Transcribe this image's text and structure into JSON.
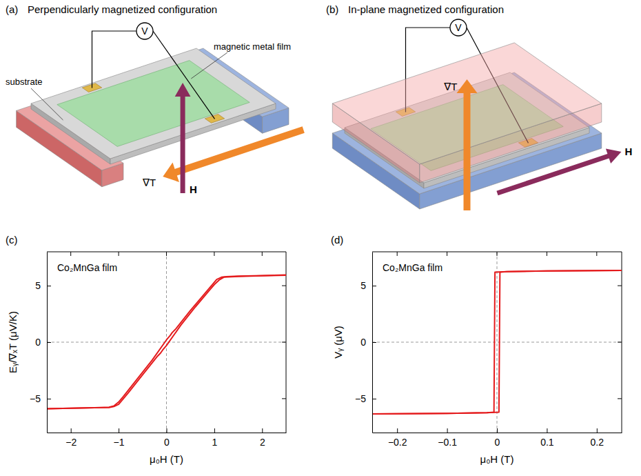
{
  "diagrams": [
    {
      "letter": "(a)",
      "title": "Perpendicularly magnetized configuration",
      "labels": {
        "voltmeter": "V",
        "film": "magnetic metal film",
        "substrate": "substrate",
        "gradient": "∇T",
        "field": "H"
      }
    },
    {
      "letter": "(b)",
      "title": "In-plane magnetized configuration",
      "labels": {
        "voltmeter": "V",
        "gradient": "∇T",
        "field": "H"
      }
    }
  ],
  "chart_data": [
    {
      "type": "line",
      "letter": "(c)",
      "annotation": "Co₂MnGa film",
      "x_label": "μ₀H (T)",
      "y_label": "Eᵧ/∇ₓT (μV/K)",
      "xlim": [
        -2.5,
        2.5
      ],
      "xticks": [
        {
          "value": -2,
          "label": "−2"
        },
        {
          "value": -1,
          "label": "−1"
        },
        0,
        1,
        2
      ],
      "ylim": [
        -8,
        8
      ],
      "yticks": [
        {
          "value": -5,
          "label": "−5"
        },
        0,
        5
      ],
      "ref_lines": {
        "x": [
          0
        ],
        "y": [
          0
        ]
      },
      "line_style": "solid",
      "series": [
        {
          "color": "#e41a1c",
          "x": [
            2.5,
            2.0,
            1.5,
            1.25,
            1.15,
            1.05,
            0.8,
            0.5,
            0.2,
            0.12,
            0.08,
            0.0,
            -0.3,
            -0.6,
            -0.9,
            -1.0,
            -1.1,
            -1.2,
            -1.5,
            -2.0,
            -2.5
          ],
          "values": [
            5.95,
            5.9,
            5.85,
            5.8,
            5.75,
            5.55,
            4.3,
            2.8,
            1.2,
            0.85,
            0.6,
            0.2,
            -1.6,
            -3.2,
            -4.8,
            -5.3,
            -5.65,
            -5.75,
            -5.8,
            -5.85,
            -5.9
          ]
        },
        {
          "color": "#e41a1c",
          "x": [
            -2.5,
            -2.0,
            -1.5,
            -1.2,
            -1.1,
            -1.0,
            -0.8,
            -0.5,
            -0.2,
            -0.12,
            -0.08,
            0.0,
            0.3,
            0.6,
            0.9,
            1.0,
            1.1,
            1.2,
            1.5,
            2.0,
            2.5
          ],
          "values": [
            -5.9,
            -5.85,
            -5.8,
            -5.78,
            -5.7,
            -5.5,
            -4.5,
            -2.9,
            -1.3,
            -0.95,
            -0.7,
            -0.3,
            1.5,
            3.1,
            4.6,
            5.1,
            5.5,
            5.75,
            5.82,
            5.88,
            5.92
          ]
        }
      ]
    },
    {
      "type": "line",
      "letter": "(d)",
      "annotation": "Co₂MnGa film",
      "x_label": "μ₀H (T)",
      "y_label": "Vᵧ (μV)",
      "xlim": [
        -0.25,
        0.25
      ],
      "xticks": [
        {
          "value": -0.2,
          "label": "−0.2"
        },
        {
          "value": -0.1,
          "label": "−0.1"
        },
        0,
        0.1,
        0.2
      ],
      "ylim": [
        -8,
        8
      ],
      "yticks": [
        {
          "value": -5,
          "label": "−5"
        },
        0,
        5
      ],
      "ref_lines": {
        "x": [
          0
        ],
        "y": [
          0
        ]
      },
      "line_style": "solid",
      "series": [
        {
          "color": "#e41a1c",
          "x": [
            0.25,
            0.1,
            0.02,
            -0.004,
            -0.006,
            -0.02,
            -0.1,
            -0.25
          ],
          "values": [
            6.35,
            6.3,
            6.25,
            6.2,
            -6.2,
            -6.25,
            -6.3,
            -6.35
          ]
        },
        {
          "color": "#e41a1c",
          "x": [
            -0.25,
            -0.1,
            -0.02,
            0.004,
            0.006,
            0.02,
            0.1,
            0.25
          ],
          "values": [
            -6.35,
            -6.3,
            -6.25,
            -6.2,
            6.2,
            6.25,
            6.3,
            6.35
          ]
        }
      ]
    }
  ]
}
